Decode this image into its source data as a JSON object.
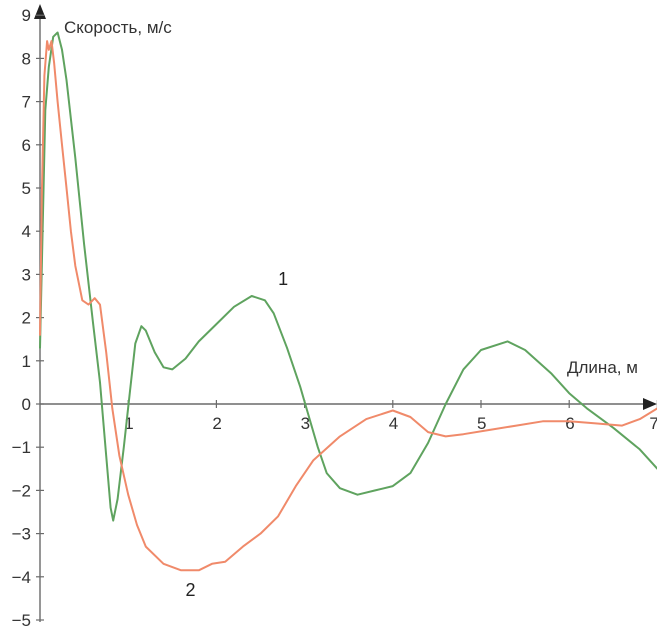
{
  "chart_data": {
    "type": "line",
    "ylabel": "Скорость, м/с",
    "xlabel": "Длина, м",
    "xlim": [
      0,
      7
    ],
    "ylim": [
      -5,
      9
    ],
    "x_ticks": [
      "1",
      "2",
      "3",
      "4",
      "5",
      "6",
      "7"
    ],
    "y_ticks": [
      "−5",
      "−4",
      "−3",
      "−2",
      "−1",
      "0",
      "1",
      "2",
      "3",
      "4",
      "5",
      "6",
      "7",
      "8",
      "9"
    ],
    "grid": false,
    "series": [
      {
        "name": "1",
        "color": "#5fa35f",
        "points": [
          [
            0.0,
            1.3
          ],
          [
            0.03,
            4.0
          ],
          [
            0.06,
            6.8
          ],
          [
            0.1,
            7.8
          ],
          [
            0.15,
            8.5
          ],
          [
            0.2,
            8.6
          ],
          [
            0.25,
            8.2
          ],
          [
            0.3,
            7.5
          ],
          [
            0.4,
            5.7
          ],
          [
            0.5,
            3.7
          ],
          [
            0.6,
            1.9
          ],
          [
            0.68,
            0.5
          ],
          [
            0.75,
            -1.2
          ],
          [
            0.8,
            -2.4
          ],
          [
            0.83,
            -2.7
          ],
          [
            0.88,
            -2.2
          ],
          [
            0.95,
            -1.0
          ],
          [
            1.02,
            0.3
          ],
          [
            1.08,
            1.4
          ],
          [
            1.15,
            1.8
          ],
          [
            1.2,
            1.7
          ],
          [
            1.3,
            1.2
          ],
          [
            1.4,
            0.85
          ],
          [
            1.5,
            0.8
          ],
          [
            1.65,
            1.05
          ],
          [
            1.8,
            1.45
          ],
          [
            2.0,
            1.85
          ],
          [
            2.2,
            2.25
          ],
          [
            2.4,
            2.5
          ],
          [
            2.55,
            2.4
          ],
          [
            2.65,
            2.1
          ],
          [
            2.8,
            1.3
          ],
          [
            2.95,
            0.4
          ],
          [
            3.05,
            -0.3
          ],
          [
            3.15,
            -1.0
          ],
          [
            3.25,
            -1.6
          ],
          [
            3.4,
            -1.95
          ],
          [
            3.6,
            -2.1
          ],
          [
            3.8,
            -2.0
          ],
          [
            4.0,
            -1.9
          ],
          [
            4.2,
            -1.6
          ],
          [
            4.4,
            -0.9
          ],
          [
            4.6,
            0.0
          ],
          [
            4.8,
            0.8
          ],
          [
            5.0,
            1.25
          ],
          [
            5.3,
            1.45
          ],
          [
            5.5,
            1.25
          ],
          [
            5.8,
            0.7
          ],
          [
            6.0,
            0.25
          ],
          [
            6.2,
            -0.1
          ],
          [
            6.5,
            -0.55
          ],
          [
            6.8,
            -1.05
          ],
          [
            7.0,
            -1.5
          ]
        ]
      },
      {
        "name": "2",
        "color": "#f08a6a",
        "points": [
          [
            0.0,
            1.6
          ],
          [
            0.02,
            4.8
          ],
          [
            0.05,
            7.6
          ],
          [
            0.08,
            8.4
          ],
          [
            0.1,
            8.2
          ],
          [
            0.13,
            8.4
          ],
          [
            0.16,
            7.9
          ],
          [
            0.2,
            7.0
          ],
          [
            0.25,
            6.0
          ],
          [
            0.3,
            5.0
          ],
          [
            0.35,
            4.0
          ],
          [
            0.4,
            3.2
          ],
          [
            0.48,
            2.4
          ],
          [
            0.55,
            2.3
          ],
          [
            0.62,
            2.45
          ],
          [
            0.68,
            2.3
          ],
          [
            0.75,
            1.2
          ],
          [
            0.82,
            -0.1
          ],
          [
            0.9,
            -1.2
          ],
          [
            1.0,
            -2.1
          ],
          [
            1.1,
            -2.8
          ],
          [
            1.2,
            -3.3
          ],
          [
            1.4,
            -3.7
          ],
          [
            1.6,
            -3.85
          ],
          [
            1.8,
            -3.85
          ],
          [
            1.95,
            -3.7
          ],
          [
            2.1,
            -3.65
          ],
          [
            2.3,
            -3.3
          ],
          [
            2.5,
            -3.0
          ],
          [
            2.7,
            -2.6
          ],
          [
            2.9,
            -1.9
          ],
          [
            3.1,
            -1.3
          ],
          [
            3.4,
            -0.75
          ],
          [
            3.7,
            -0.35
          ],
          [
            4.0,
            -0.15
          ],
          [
            4.2,
            -0.3
          ],
          [
            4.4,
            -0.65
          ],
          [
            4.6,
            -0.75
          ],
          [
            4.8,
            -0.7
          ],
          [
            5.1,
            -0.6
          ],
          [
            5.4,
            -0.5
          ],
          [
            5.7,
            -0.4
          ],
          [
            6.0,
            -0.4
          ],
          [
            6.3,
            -0.45
          ],
          [
            6.6,
            -0.5
          ],
          [
            6.8,
            -0.35
          ],
          [
            7.0,
            -0.1
          ]
        ]
      }
    ],
    "annotations": [
      {
        "text": "1",
        "x": 2.7,
        "y": 2.75
      },
      {
        "text": "2",
        "x": 1.65,
        "y": -4.45
      }
    ]
  }
}
